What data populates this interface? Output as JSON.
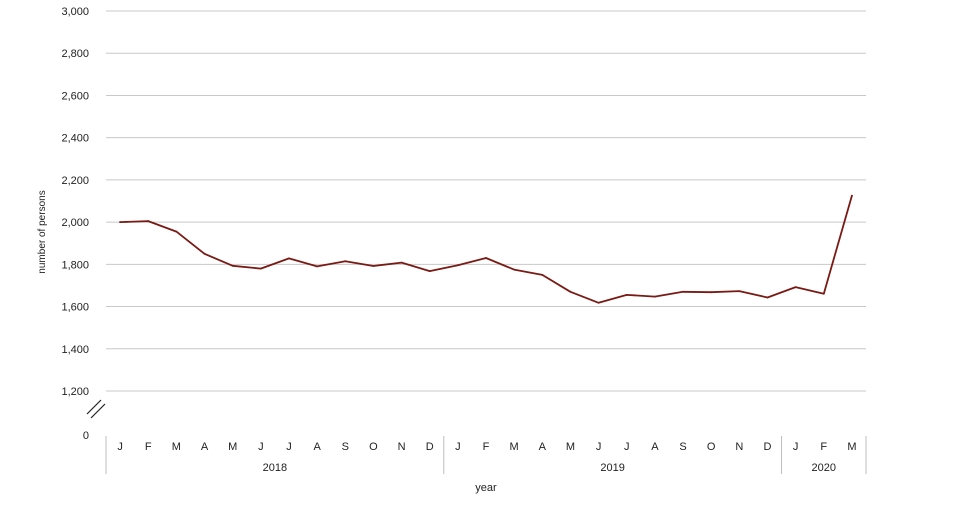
{
  "chart_data": {
    "type": "line",
    "ylabel": "number of persons",
    "xlabel": "year",
    "y_ticks": [
      "0",
      "1,200",
      "1,400",
      "1,600",
      "1,800",
      "2,000",
      "2,200",
      "2,400",
      "2,600",
      "2,800",
      "3,000"
    ],
    "ylim": [
      1200,
      3000
    ],
    "y_axis_break": true,
    "grid": true,
    "line_color": "#7a1a14",
    "months": [
      "J",
      "F",
      "M",
      "A",
      "M",
      "J",
      "J",
      "A",
      "S",
      "O",
      "N",
      "D",
      "J",
      "F",
      "M",
      "A",
      "M",
      "J",
      "J",
      "A",
      "S",
      "O",
      "N",
      "D",
      "J",
      "F",
      "M"
    ],
    "years": [
      {
        "label": "2018",
        "months": 12
      },
      {
        "label": "2019",
        "months": 12
      },
      {
        "label": "2020",
        "months": 3
      }
    ],
    "series": [
      {
        "values": [
          2000,
          2005,
          1955,
          1850,
          1793,
          1780,
          1828,
          1790,
          1815,
          1792,
          1808,
          1768,
          1796,
          1830,
          1775,
          1750,
          1670,
          1618,
          1655,
          1647,
          1670,
          1668,
          1673,
          1643,
          1692,
          1661,
          2125
        ]
      }
    ]
  }
}
